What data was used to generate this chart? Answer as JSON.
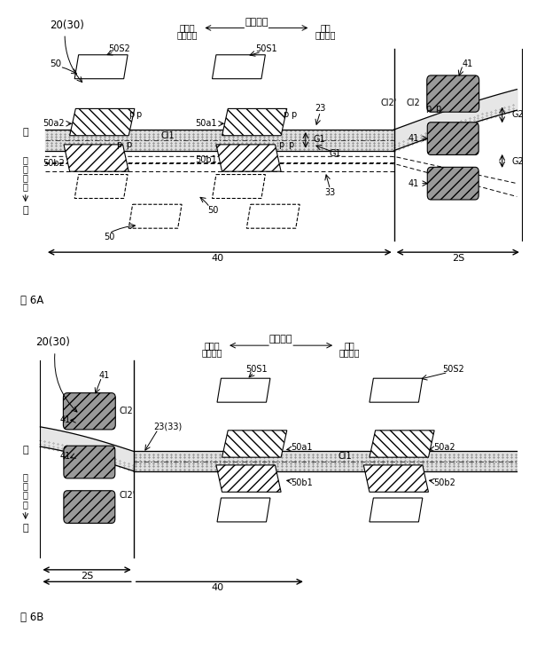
{
  "bg_color": "#ffffff",
  "fig6A_title": "图 6A",
  "fig6B_title": "图 6B",
  "dir_label": "左右方向",
  "figA_left1": "另一方",
  "figA_left2": "（内侧）",
  "figA_right1": "一方",
  "figA_right2": "（外侧）",
  "figB_left1": "另一方",
  "figB_left2": "（外侧）",
  "figB_right1": "一方",
  "figB_right2": "（内侧）",
  "label_2030": "20(30)",
  "up": "上",
  "updown": "上\n下\n方\n向",
  "down": "下"
}
